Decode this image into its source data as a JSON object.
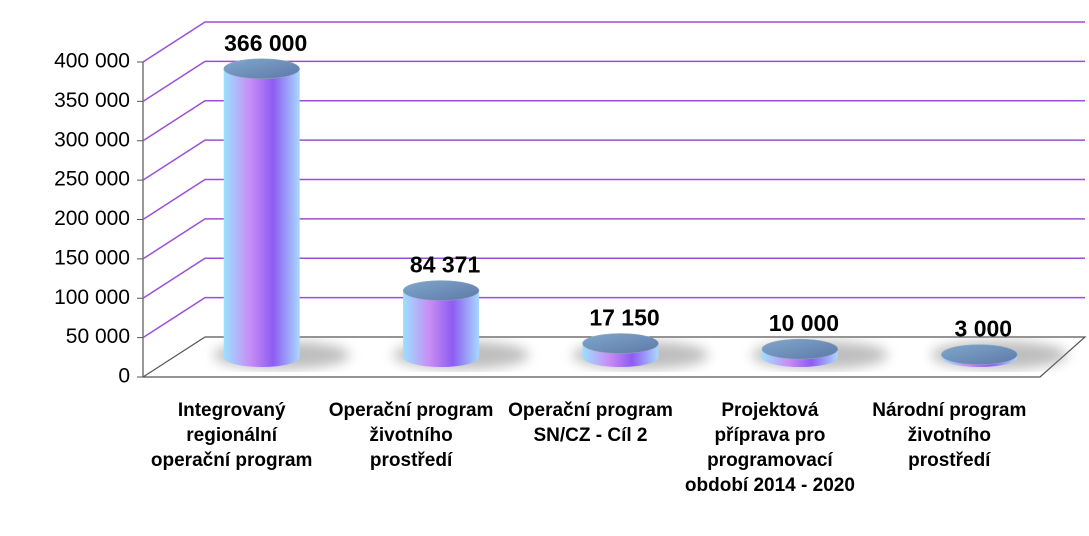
{
  "chart_data": {
    "type": "bar",
    "categories": [
      "Integrovaný regionální operační program",
      "Operační program životního prostředí",
      "Operační program SN/CZ - Cíl 2",
      "Projektová příprava pro programovací období 2014 - 2020",
      "Národní program životního prostředí"
    ],
    "values": [
      366000,
      84371,
      17150,
      10000,
      3000
    ],
    "value_labels": [
      "366 000",
      "84 371",
      "17 150",
      "10 000",
      "3 000"
    ],
    "ylim": [
      0,
      400000
    ],
    "yticks": [
      0,
      {
        "value": 50000,
        "label": "50 000"
      },
      {
        "value": 100000,
        "label": "100 000"
      },
      {
        "value": 150000,
        "label": "150 000"
      },
      {
        "value": 200000,
        "label": "200 000"
      },
      {
        "value": 250000,
        "label": "250 000"
      },
      {
        "value": 300000,
        "label": "300 000"
      },
      {
        "value": 350000,
        "label": "350 000"
      },
      {
        "value": 400000,
        "label": "400 000"
      }
    ],
    "grid": true,
    "color": "#a77cf0",
    "grid_color": "#9b4fd8"
  }
}
